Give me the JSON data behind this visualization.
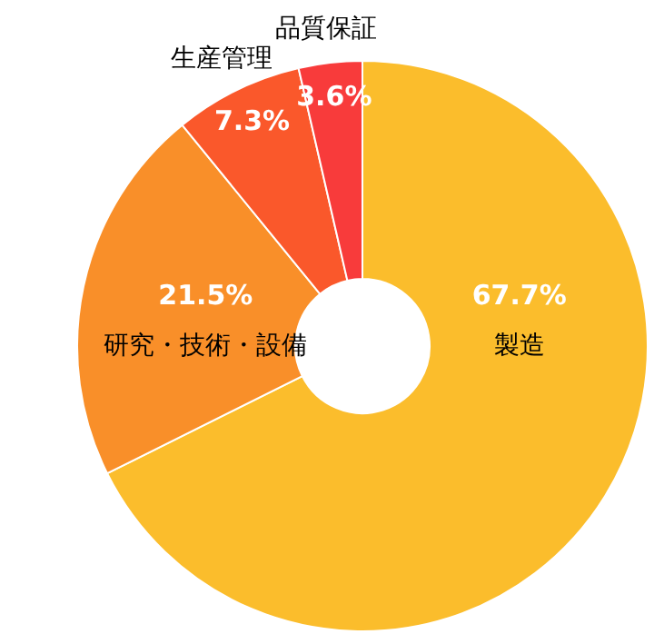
{
  "chart_data": {
    "type": "donut",
    "categories": [
      "製造",
      "研究・技術・設備",
      "生産管理",
      "品質保証"
    ],
    "values": [
      67.7,
      21.5,
      7.3,
      3.6
    ],
    "colors": [
      "#fbbd2c",
      "#f98f29",
      "#fa582b",
      "#f83b3b"
    ],
    "value_labels": [
      "67.7%",
      "21.5%",
      "7.3%",
      "3.6%"
    ]
  }
}
